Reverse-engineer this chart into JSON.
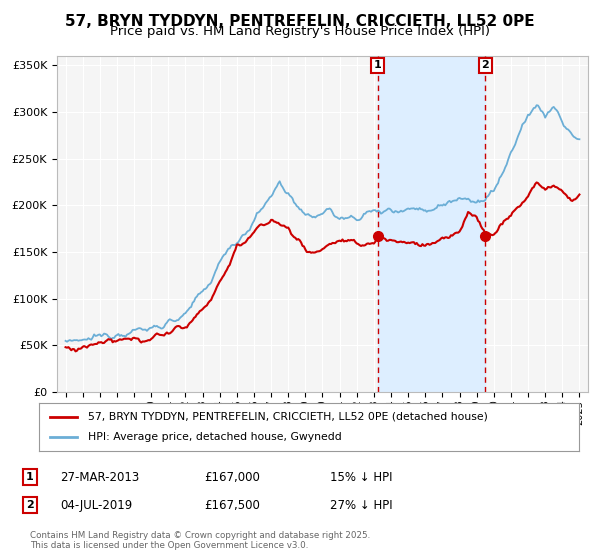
{
  "title": "57, BRYN TYDDYN, PENTREFELIN, CRICCIETH, LL52 0PE",
  "subtitle": "Price paid vs. HM Land Registry's House Price Index (HPI)",
  "ylim": [
    0,
    360000
  ],
  "xlim": [
    1994.5,
    2025.5
  ],
  "yticks": [
    0,
    50000,
    100000,
    150000,
    200000,
    250000,
    300000,
    350000
  ],
  "ytick_labels": [
    "£0",
    "£50K",
    "£100K",
    "£150K",
    "£200K",
    "£250K",
    "£300K",
    "£350K"
  ],
  "xticks": [
    1995,
    1996,
    1997,
    1998,
    1999,
    2000,
    2001,
    2002,
    2003,
    2004,
    2005,
    2006,
    2007,
    2008,
    2009,
    2010,
    2011,
    2012,
    2013,
    2014,
    2015,
    2016,
    2017,
    2018,
    2019,
    2020,
    2021,
    2022,
    2023,
    2024,
    2025
  ],
  "hpi_color": "#6baed6",
  "price_color": "#cc0000",
  "shade_color": "#ddeeff",
  "background_color": "#ffffff",
  "plot_bg_color": "#f5f5f5",
  "grid_color": "#ffffff",
  "marker1_x": 2013.23,
  "marker1_y": 167000,
  "marker2_x": 2019.51,
  "marker2_y": 167500,
  "vline1_x": 2013.23,
  "vline2_x": 2019.51,
  "legend_label_red": "57, BRYN TYDDYN, PENTREFELIN, CRICCIETH, LL52 0PE (detached house)",
  "legend_label_blue": "HPI: Average price, detached house, Gwynedd",
  "note1_date": "27-MAR-2013",
  "note1_price": "£167,000",
  "note1_hpi": "15% ↓ HPI",
  "note2_date": "04-JUL-2019",
  "note2_price": "£167,500",
  "note2_hpi": "27% ↓ HPI",
  "footer": "Contains HM Land Registry data © Crown copyright and database right 2025.\nThis data is licensed under the Open Government Licence v3.0.",
  "title_fontsize": 11,
  "subtitle_fontsize": 9.5
}
